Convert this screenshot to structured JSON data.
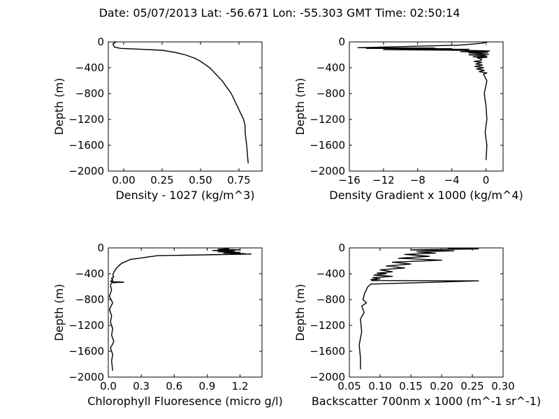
{
  "figure": {
    "suptitle": "Date: 05/07/2013  Lat:  -56.671 Lon:  -55.303  GMT Time: 02:50:14"
  },
  "chart_data": [
    {
      "type": "line",
      "title": "",
      "xlabel": "Density - 1027 (kg/m^3)",
      "ylabel": "Depth (m)",
      "xlim": [
        -0.1,
        0.9
      ],
      "ylim": [
        -2000,
        0
      ],
      "xticks": [
        0.0,
        0.25,
        0.5,
        0.75
      ],
      "xtick_labels": [
        "0.00",
        "0.25",
        "0.50",
        "0.75"
      ],
      "yticks": [
        0,
        -400,
        -800,
        -1200,
        -1600,
        -2000
      ],
      "ytick_labels": [
        "0",
        "−400",
        "−800",
        "−1200",
        "−1600",
        "−2000"
      ],
      "series": [
        {
          "color": "#000000",
          "x": [
            -0.05,
            -0.07,
            -0.06,
            -0.02,
            0.08,
            0.25,
            0.33,
            0.4,
            0.46,
            0.5,
            0.53,
            0.56,
            0.6,
            0.64,
            0.67,
            0.7,
            0.72,
            0.74,
            0.76,
            0.78,
            0.79,
            0.79,
            0.8,
            0.81
          ],
          "y": [
            0,
            -30,
            -80,
            -100,
            -110,
            -130,
            -160,
            -200,
            -250,
            -300,
            -350,
            -400,
            -500,
            -600,
            -700,
            -800,
            -900,
            -1000,
            -1100,
            -1200,
            -1300,
            -1400,
            -1600,
            -1880
          ]
        }
      ]
    },
    {
      "type": "line",
      "title": "",
      "xlabel": "Density Gradient x 1000 (kg/m^4)",
      "ylabel": "Depth (m)",
      "xlim": [
        -16,
        2
      ],
      "ylim": [
        -2000,
        0
      ],
      "xticks": [
        -16,
        -12,
        -8,
        -4,
        0
      ],
      "xtick_labels": [
        "−16",
        "−12",
        "−8",
        "−4",
        "0"
      ],
      "yticks": [
        0,
        -400,
        -800,
        -1200,
        -1600,
        -2000
      ],
      "ytick_labels": [
        "0",
        "−400",
        "−800",
        "−1200",
        "−1600",
        "−2000"
      ],
      "series": [
        {
          "color": "#000000",
          "x": [
            0.2,
            -0.5,
            -3,
            -15,
            -6,
            -14,
            -4,
            -9,
            -2,
            -12,
            -3,
            0.4,
            -3,
            0.2,
            -2,
            -0.6,
            0.3,
            -2,
            -0.3,
            0.1,
            -1.5,
            0.1,
            -1,
            -0.5,
            -0.6,
            -1.4,
            -0.5,
            -1.2,
            -0.4,
            -1.3,
            -0.3,
            -1.1,
            -0.2,
            -0.8,
            0.1,
            -0.3,
            0.1,
            -0.2,
            0,
            0.1,
            -0.1,
            0.1,
            0
          ],
          "y": [
            0,
            -20,
            -50,
            -90,
            -95,
            -100,
            -105,
            -110,
            -115,
            -120,
            -130,
            -140,
            -150,
            -160,
            -170,
            -180,
            -190,
            -200,
            -210,
            -220,
            -230,
            -240,
            -250,
            -270,
            -290,
            -300,
            -320,
            -340,
            -360,
            -380,
            -400,
            -420,
            -440,
            -460,
            -480,
            -500,
            -600,
            -800,
            -1000,
            -1200,
            -1400,
            -1600,
            -1830
          ]
        }
      ]
    },
    {
      "type": "line",
      "title": "",
      "xlabel": "Chlorophyll Fluoresence (micro g/l)",
      "ylabel": "Depth (m)",
      "xlim": [
        0,
        1.4
      ],
      "ylim": [
        -2000,
        0
      ],
      "xticks": [
        0.0,
        0.3,
        0.6,
        0.9,
        1.2
      ],
      "xtick_labels": [
        "0.0",
        "0.3",
        "0.6",
        "0.9",
        "1.2"
      ],
      "yticks": [
        0,
        -400,
        -800,
        -1200,
        -1600,
        -2000
      ],
      "ytick_labels": [
        "0",
        "−400",
        "−800",
        "−1200",
        "−1600",
        "−2000"
      ],
      "series": [
        {
          "color": "#000000",
          "x": [
            1.1,
            1.0,
            1.2,
            0.95,
            1.15,
            1.0,
            1.2,
            1.05,
            1.25,
            1.1,
            0.9,
            1.3,
            0.45,
            0.2,
            0.12,
            0.08,
            0.06,
            0.05,
            0.04,
            0.05,
            0.03,
            0.04,
            0.03,
            0.04,
            0.02,
            0.05,
            0.14,
            0.03,
            0.02,
            0.03,
            0.01,
            0.04,
            0.01,
            0.03,
            0.02,
            0.04,
            0.03,
            0.05,
            0.02,
            0.04,
            0.03,
            0.04
          ],
          "y": [
            -10,
            -20,
            -30,
            -40,
            -50,
            -60,
            -70,
            -80,
            -90,
            -100,
            -105,
            -95,
            -120,
            -180,
            -240,
            -300,
            -350,
            -380,
            -420,
            -450,
            -470,
            -490,
            -500,
            -510,
            -520,
            -525,
            -530,
            -540,
            -580,
            -650,
            -750,
            -850,
            -950,
            -1050,
            -1150,
            -1250,
            -1350,
            -1450,
            -1550,
            -1650,
            -1750,
            -1900
          ]
        }
      ]
    },
    {
      "type": "line",
      "title": "",
      "xlabel": "Backscatter 700nm x 1000 (m^-1 sr^-1)",
      "ylabel": "Depth (m)",
      "xlim": [
        0.05,
        0.3
      ],
      "ylim": [
        -2000,
        0
      ],
      "xticks": [
        0.05,
        0.1,
        0.15,
        0.2,
        0.25,
        0.3
      ],
      "xtick_labels": [
        "0.05",
        "0.10",
        "0.15",
        "0.20",
        "0.25",
        "0.30"
      ],
      "yticks": [
        0,
        -400,
        -800,
        -1200,
        -1600,
        -2000
      ],
      "ytick_labels": [
        "0",
        "−400",
        "−800",
        "−1200",
        "−1600",
        "−2000"
      ],
      "series": [
        {
          "color": "#000000",
          "x": [
            0.21,
            0.26,
            0.15,
            0.22,
            0.16,
            0.19,
            0.14,
            0.18,
            0.13,
            0.2,
            0.12,
            0.15,
            0.11,
            0.14,
            0.1,
            0.12,
            0.095,
            0.11,
            0.09,
            0.12,
            0.088,
            0.1,
            0.085,
            0.095,
            0.086,
            0.26,
            0.085,
            0.08,
            0.075,
            0.072,
            0.078,
            0.07,
            0.074,
            0.068,
            0.07,
            0.066,
            0.068,
            0.068
          ],
          "y": [
            -5,
            -15,
            -30,
            -45,
            -60,
            -80,
            -100,
            -130,
            -160,
            -190,
            -220,
            -250,
            -280,
            -310,
            -340,
            -370,
            -390,
            -400,
            -420,
            -440,
            -460,
            -480,
            -490,
            -500,
            -505,
            -510,
            -560,
            -600,
            -700,
            -800,
            -850,
            -900,
            -1000,
            -1100,
            -1300,
            -1500,
            -1700,
            -1880
          ]
        }
      ]
    }
  ]
}
